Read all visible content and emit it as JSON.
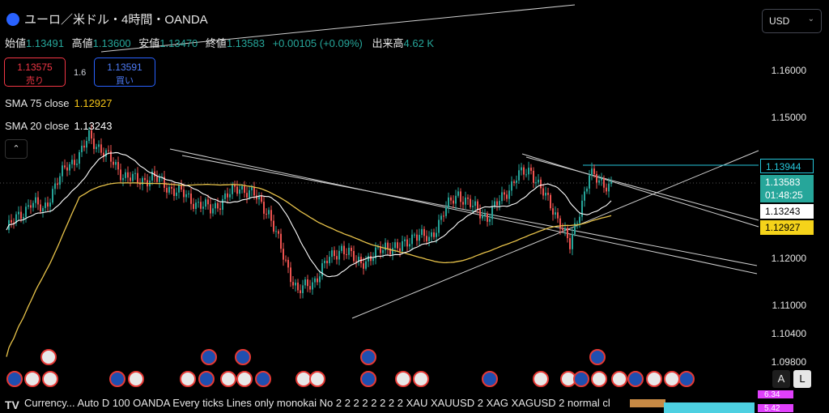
{
  "header": {
    "title": "ユーロ／米ドル・4時間・OANDA",
    "ohlc": [
      {
        "label": "始値",
        "value": "1.13491"
      },
      {
        "label": "高値",
        "value": "1.13600"
      },
      {
        "label": "安値",
        "value": "1.13470"
      },
      {
        "label": "終値",
        "value": "1.13583"
      }
    ],
    "change": "+0.00105 (+0.09%)",
    "volume_label": "出来高",
    "volume_value": "4.62 K"
  },
  "trade": {
    "sell_price": "1.13575",
    "sell_label": "売り",
    "spread": "1.6",
    "buy_price": "1.13591",
    "buy_label": "買い"
  },
  "indicators": [
    {
      "name": "SMA 75 close",
      "value": "1.12927",
      "color": "#f5c518"
    },
    {
      "name": "SMA 20 close",
      "value": "1.13243",
      "color": "#ffffff"
    }
  ],
  "currency_select": "USD",
  "scale_buttons": [
    "A",
    "L"
  ],
  "price_tags": {
    "alert": "1.13944",
    "last": "1.13583",
    "countdown": "01:48:25",
    "sma20": "1.13243",
    "sma75": "1.12927"
  },
  "bottom_bar": "Currency... Auto D 100 OANDA Every ticks Lines only monokai No 2 2 2 2 2 2 2 2 XAU XAUUSD 2 XAG XAGUSD 2 normal cl",
  "bottom_badges": [
    "6.34",
    "5.42"
  ],
  "colors": {
    "up": "#26a69a",
    "down": "#ef5350",
    "sma75": "#e8c34a",
    "sma20": "#ffffff",
    "alert": "#26c6da"
  },
  "chart_data": {
    "type": "candlestick",
    "symbol": "EUR/USD",
    "timeframe": "4h",
    "ylim": [
      1.095,
      1.168
    ],
    "y_ticks": [
      1.16,
      1.15,
      1.12,
      1.11,
      1.104,
      1.098
    ],
    "series": [
      {
        "name": "SMA 75 close",
        "last": 1.12927
      },
      {
        "name": "SMA 20 close",
        "last": 1.13243
      }
    ],
    "close_anchors": [
      [
        0,
        1.1262
      ],
      [
        5,
        1.1292
      ],
      [
        10,
        1.132
      ],
      [
        15,
        1.1305
      ],
      [
        20,
        1.1355
      ],
      [
        25,
        1.14
      ],
      [
        30,
        1.142
      ],
      [
        34,
        1.146
      ],
      [
        38,
        1.144
      ],
      [
        42,
        1.1415
      ],
      [
        48,
        1.138
      ],
      [
        54,
        1.1365
      ],
      [
        60,
        1.1375
      ],
      [
        66,
        1.1355
      ],
      [
        72,
        1.134
      ],
      [
        78,
        1.132
      ],
      [
        84,
        1.1305
      ],
      [
        90,
        1.133
      ],
      [
        96,
        1.1355
      ],
      [
        102,
        1.1335
      ],
      [
        108,
        1.13
      ],
      [
        114,
        1.1205
      ],
      [
        120,
        1.113
      ],
      [
        126,
        1.115
      ],
      [
        132,
        1.1195
      ],
      [
        138,
        1.1225
      ],
      [
        144,
        1.1195
      ],
      [
        150,
        1.12
      ],
      [
        156,
        1.123
      ],
      [
        162,
        1.122
      ],
      [
        168,
        1.1255
      ],
      [
        174,
        1.124
      ],
      [
        180,
        1.13
      ],
      [
        186,
        1.134
      ],
      [
        192,
        1.131
      ],
      [
        198,
        1.129
      ],
      [
        204,
        1.133
      ],
      [
        210,
        1.1375
      ],
      [
        216,
        1.139
      ],
      [
        222,
        1.133
      ],
      [
        228,
        1.128
      ],
      [
        232,
        1.1225
      ],
      [
        236,
        1.1305
      ],
      [
        240,
        1.138
      ],
      [
        244,
        1.1365
      ],
      [
        249,
        1.1358
      ]
    ]
  }
}
